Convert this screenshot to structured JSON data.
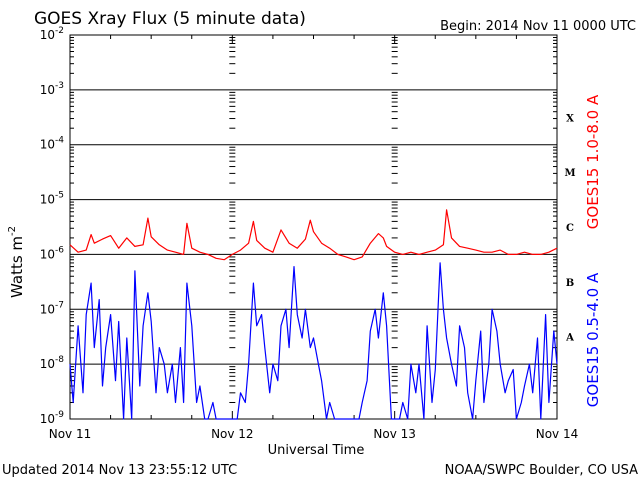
{
  "chart_data": {
    "type": "line",
    "title": "GOES Xray Flux (5 minute data)",
    "begin_label": "Begin:  2014 Nov 11 0000 UTC",
    "xlabel": "Universal Time",
    "ylabel_base": "Watts m",
    "ylabel_exp": "-2",
    "yscale": "log",
    "ylim": [
      1e-09,
      0.01
    ],
    "xlim_days": [
      0,
      3
    ],
    "grid": true,
    "x_ticks": [
      {
        "day": 0,
        "label": "Nov 11"
      },
      {
        "day": 1,
        "label": "Nov 12"
      },
      {
        "day": 2,
        "label": "Nov 13"
      },
      {
        "day": 3,
        "label": "Nov 14"
      }
    ],
    "y_ticks": [
      {
        "exp": -2,
        "base": "10",
        "sup": "-2"
      },
      {
        "exp": -3,
        "base": "10",
        "sup": "-3"
      },
      {
        "exp": -4,
        "base": "10",
        "sup": "-4"
      },
      {
        "exp": -5,
        "base": "10",
        "sup": "-5"
      },
      {
        "exp": -6,
        "base": "10",
        "sup": "-6"
      },
      {
        "exp": -7,
        "base": "10",
        "sup": "-7"
      },
      {
        "exp": -8,
        "base": "10",
        "sup": "-8"
      },
      {
        "exp": -9,
        "base": "10",
        "sup": "-9"
      }
    ],
    "flare_classes": [
      {
        "label": "X",
        "exp": -3.5
      },
      {
        "label": "M",
        "exp": -4.5
      },
      {
        "label": "C",
        "exp": -5.5
      },
      {
        "label": "B",
        "exp": -6.5
      },
      {
        "label": "A",
        "exp": -7.5
      }
    ],
    "series": [
      {
        "name": "GOES15 1.0-8.0 A",
        "color": "#ff0000",
        "x": [
          0,
          0.05,
          0.1,
          0.13,
          0.15,
          0.2,
          0.25,
          0.28,
          0.3,
          0.35,
          0.4,
          0.45,
          0.48,
          0.5,
          0.55,
          0.6,
          0.65,
          0.7,
          0.72,
          0.75,
          0.8,
          0.85,
          0.9,
          0.95,
          1.0,
          1.05,
          1.1,
          1.13,
          1.15,
          1.2,
          1.25,
          1.3,
          1.35,
          1.4,
          1.45,
          1.48,
          1.5,
          1.55,
          1.6,
          1.65,
          1.7,
          1.75,
          1.8,
          1.85,
          1.9,
          1.93,
          1.95,
          2.0,
          2.05,
          2.1,
          2.15,
          2.2,
          2.25,
          2.3,
          2.32,
          2.35,
          2.4,
          2.45,
          2.5,
          2.55,
          2.6,
          2.65,
          2.7,
          2.75,
          2.8,
          2.85,
          2.9,
          2.95,
          3.0
        ],
        "y": [
          1.5e-06,
          1.1e-06,
          1.2e-06,
          2.3e-06,
          1.6e-06,
          1.9e-06,
          2.2e-06,
          1.6e-06,
          1.3e-06,
          2e-06,
          1.4e-06,
          1.5e-06,
          4.6e-06,
          2.1e-06,
          1.5e-06,
          1.2e-06,
          1.1e-06,
          1e-06,
          3.7e-06,
          1.3e-06,
          1.1e-06,
          1e-06,
          8.5e-07,
          8e-07,
          1e-06,
          1.2e-06,
          1.6e-06,
          4e-06,
          1.8e-06,
          1.3e-06,
          1.1e-06,
          2.8e-06,
          1.6e-06,
          1.3e-06,
          1.9e-06,
          4.2e-06,
          2.6e-06,
          1.6e-06,
          1.3e-06,
          1e-06,
          9e-07,
          8e-07,
          9e-07,
          1.6e-06,
          2.4e-06,
          2e-06,
          1.4e-06,
          1.1e-06,
          1e-06,
          1.1e-06,
          1e-06,
          1.1e-06,
          1.2e-06,
          1.5e-06,
          6.5e-06,
          2e-06,
          1.4e-06,
          1.3e-06,
          1.2e-06,
          1.1e-06,
          1.1e-06,
          1.2e-06,
          1e-06,
          1e-06,
          1.1e-06,
          1e-06,
          1e-06,
          1.1e-06,
          1.3e-06
        ]
      },
      {
        "name": "GOES15 0.5-4.0 A",
        "color": "#0000ff",
        "x": [
          0,
          0.02,
          0.05,
          0.08,
          0.1,
          0.13,
          0.15,
          0.18,
          0.2,
          0.22,
          0.25,
          0.28,
          0.3,
          0.33,
          0.35,
          0.38,
          0.4,
          0.43,
          0.45,
          0.48,
          0.5,
          0.53,
          0.55,
          0.58,
          0.6,
          0.63,
          0.65,
          0.68,
          0.7,
          0.72,
          0.75,
          0.78,
          0.8,
          0.83,
          0.85,
          0.88,
          0.9,
          0.93,
          0.95,
          0.98,
          1.0,
          1.03,
          1.05,
          1.08,
          1.1,
          1.13,
          1.15,
          1.18,
          1.2,
          1.23,
          1.25,
          1.28,
          1.3,
          1.33,
          1.35,
          1.38,
          1.4,
          1.43,
          1.45,
          1.48,
          1.5,
          1.53,
          1.55,
          1.58,
          1.6,
          1.63,
          1.65,
          1.68,
          1.7,
          1.73,
          1.75,
          1.78,
          1.8,
          1.83,
          1.85,
          1.88,
          1.9,
          1.93,
          1.95,
          1.98,
          2.0,
          2.03,
          2.05,
          2.08,
          2.1,
          2.13,
          2.15,
          2.18,
          2.2,
          2.23,
          2.25,
          2.28,
          2.3,
          2.32,
          2.35,
          2.38,
          2.4,
          2.43,
          2.45,
          2.48,
          2.5,
          2.53,
          2.55,
          2.58,
          2.6,
          2.63,
          2.65,
          2.68,
          2.7,
          2.73,
          2.75,
          2.78,
          2.8,
          2.83,
          2.85,
          2.88,
          2.9,
          2.93,
          2.95,
          2.98,
          3.0
        ],
        "y": [
          1e-08,
          2e-09,
          5e-08,
          3e-09,
          8e-08,
          3e-07,
          2e-08,
          1.5e-07,
          4e-09,
          2e-08,
          8e-08,
          5e-09,
          6e-08,
          1e-09,
          3e-08,
          1e-09,
          5e-07,
          4e-09,
          5e-08,
          2e-07,
          6e-08,
          3e-09,
          2e-08,
          1e-08,
          3e-09,
          1e-08,
          2e-09,
          2e-08,
          2e-09,
          3e-07,
          5e-08,
          2e-09,
          4e-09,
          1e-09,
          1e-09,
          2e-09,
          1e-09,
          1e-09,
          1e-09,
          1e-09,
          1e-09,
          1e-09,
          3e-09,
          2e-09,
          1e-08,
          3e-07,
          5e-08,
          8e-08,
          2e-08,
          3e-09,
          1e-08,
          5e-09,
          5e-08,
          1e-07,
          2e-08,
          6e-07,
          8e-08,
          3e-08,
          1e-07,
          2e-08,
          3e-08,
          1e-08,
          5e-09,
          1e-09,
          2e-09,
          1e-09,
          1e-09,
          1e-09,
          1e-09,
          1e-09,
          1e-09,
          1e-09,
          2e-09,
          5e-09,
          4e-08,
          1e-07,
          3e-08,
          2e-07,
          5e-08,
          1e-09,
          1e-09,
          1e-09,
          2e-09,
          1e-09,
          1e-08,
          3e-09,
          1e-08,
          1e-09,
          5e-08,
          2e-09,
          8e-09,
          7e-07,
          1e-07,
          3e-08,
          1e-08,
          4e-09,
          5e-08,
          2e-08,
          3e-09,
          1e-09,
          5e-09,
          4e-08,
          2e-09,
          1e-08,
          1e-07,
          4e-08,
          1e-08,
          3e-09,
          5e-09,
          8e-09,
          1e-09,
          2e-09,
          4e-09,
          1e-08,
          3e-09,
          3e-08,
          1e-09,
          8e-08,
          2e-09,
          4e-08,
          1e-08
        ]
      }
    ]
  },
  "footer": {
    "updated": "Updated 2014 Nov 13 23:55:12 UTC",
    "source": "NOAA/SWPC Boulder, CO USA"
  }
}
